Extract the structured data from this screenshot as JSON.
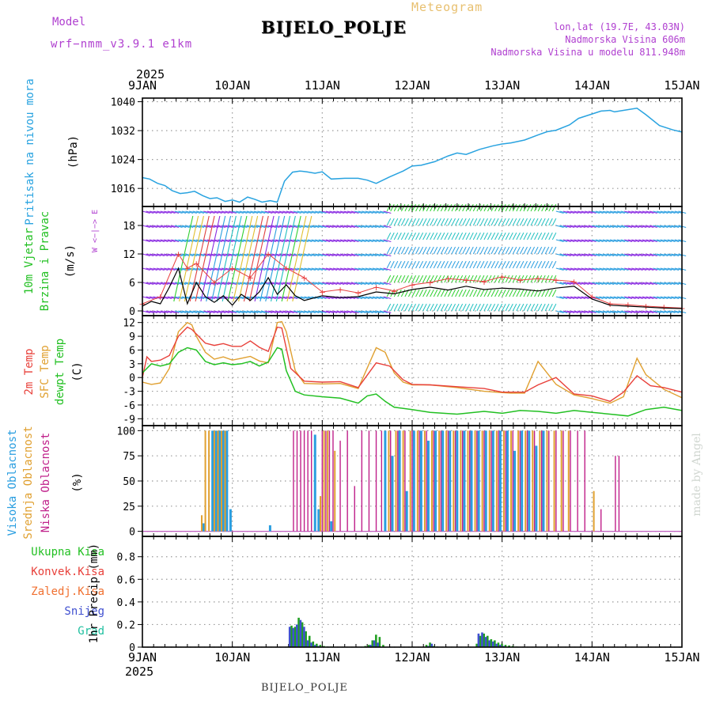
{
  "header": {
    "model_label": "Model",
    "model_version": "wrf−nmm_v3.9.1  e1km",
    "station": "BIJELO_POLJE",
    "product": "Meteogram",
    "lonlat": "lon,lat (19.7E, 43.03N)",
    "elevation": "Nadmorska Visina 606m",
    "model_elevation": "Nadmorska Visina u modelu 811.948m"
  },
  "footer_station": "BIJELO_POLJE",
  "watermark": "made by Angel",
  "colors": {
    "pressure": "#29a3e0",
    "temp2m": "#e8403a",
    "sfctemp": "#e0a030",
    "dewpt": "#22c022",
    "cloud_high": "#2a9ee0",
    "cloud_mid": "#e0a030",
    "cloud_low": "#c0208a",
    "precip_total": "#22a022",
    "precip_snow": "#4050d0",
    "label_purple": "#b040d0"
  },
  "chart_data": [
    {
      "type": "line",
      "panel": "pressure",
      "title": "",
      "ylabel_lines": [
        "Pritisak na nivou mora",
        "(hPa)"
      ],
      "x_axis": {
        "year_label": "2025",
        "ticks": [
          "9JAN",
          "10JAN",
          "11JAN",
          "12JAN",
          "13JAN",
          "14JAN",
          "15JAN"
        ],
        "range_days": [
          0,
          6
        ]
      },
      "ylim": [
        1011,
        1041
      ],
      "yticks": [
        1016,
        1024,
        1032,
        1040
      ],
      "grid": true,
      "series": [
        {
          "x": [
            0,
            0.08,
            0.17,
            0.25,
            0.33,
            0.42,
            0.5,
            0.58,
            0.67,
            0.75,
            0.83,
            0.92,
            1.0,
            1.08,
            1.17,
            1.25,
            1.33,
            1.42,
            1.5,
            1.58,
            1.67,
            1.75,
            1.83,
            1.92,
            2.0,
            2.1,
            2.25,
            2.4,
            2.5,
            2.6,
            2.75,
            2.9,
            3.0,
            3.1,
            3.25,
            3.4,
            3.5,
            3.6,
            3.75,
            3.9,
            4.0,
            4.1,
            4.25,
            4.4,
            4.5,
            4.6,
            4.75,
            4.85,
            5.0,
            5.1,
            5.2,
            5.25,
            5.35,
            5.5,
            5.6,
            5.75,
            5.9,
            6.0
          ],
          "y": [
            1019,
            1018.6,
            1017.4,
            1016.8,
            1015.4,
            1014.6,
            1014.8,
            1015.2,
            1014,
            1013.2,
            1013.4,
            1012.4,
            1012.8,
            1012.2,
            1013.6,
            1013,
            1012.2,
            1012.6,
            1012.2,
            1018,
            1020.5,
            1020.8,
            1020.6,
            1020.2,
            1020.6,
            1018.6,
            1018.8,
            1018.8,
            1018.3,
            1017.4,
            1019.2,
            1020.8,
            1022.2,
            1022.4,
            1023.4,
            1025,
            1025.8,
            1025.4,
            1026.8,
            1027.8,
            1028.3,
            1028.6,
            1029.4,
            1030.8,
            1031.7,
            1032.1,
            1033.6,
            1035.4,
            1036.6,
            1037.4,
            1037.6,
            1037.2,
            1037.6,
            1038.2,
            1036.4,
            1033.4,
            1032.2,
            1031.6
          ]
        }
      ]
    },
    {
      "type": "line",
      "panel": "wind",
      "title": "",
      "ylabel_lines": [
        "10m Vjetar",
        "Brzina i Pravac",
        "(m/s)"
      ],
      "direction_legend": "W  <−|−>  E",
      "ylim": [
        -1,
        22
      ],
      "yticks": [
        0,
        6,
        12,
        18
      ],
      "grid": true,
      "series": [
        {
          "name_key": "speed",
          "x": [
            0,
            0.1,
            0.2,
            0.3,
            0.4,
            0.5,
            0.6,
            0.7,
            0.8,
            0.9,
            1.0,
            1.1,
            1.2,
            1.3,
            1.4,
            1.5,
            1.6,
            1.7,
            1.8,
            2.0,
            2.2,
            2.4,
            2.6,
            2.8,
            3.0,
            3.2,
            3.4,
            3.6,
            3.8,
            4.0,
            4.2,
            4.4,
            4.6,
            4.8,
            5.0,
            5.2,
            5.4,
            5.6,
            5.8,
            6.0
          ],
          "y": [
            1,
            2,
            1.5,
            5,
            9,
            1.5,
            6,
            3,
            1.8,
            3.2,
            1.2,
            3.5,
            2.2,
            4,
            7,
            3.5,
            5.5,
            3.2,
            2.2,
            3.2,
            2.8,
            3,
            4,
            3.6,
            4.5,
            5,
            4.4,
            5.2,
            4.5,
            4.8,
            4.6,
            4.2,
            4.8,
            5.2,
            2.5,
            1.2,
            1.0,
            0.8,
            0.6,
            0.5
          ]
        },
        {
          "name_key": "gust",
          "x": [
            0,
            0.2,
            0.4,
            0.5,
            0.6,
            0.8,
            1.0,
            1.2,
            1.4,
            1.6,
            1.8,
            2.0,
            2.2,
            2.4,
            2.6,
            2.8,
            3.0,
            3.2,
            3.4,
            3.6,
            3.8,
            4.0,
            4.2,
            4.4,
            4.6,
            4.8,
            5.0,
            5.2,
            5.4,
            5.6,
            5.8,
            6.0
          ],
          "y": [
            1.5,
            3,
            12,
            9,
            10,
            6,
            9,
            7,
            12,
            9,
            7,
            4,
            4.5,
            3.8,
            5,
            4.2,
            5.5,
            6,
            6.8,
            6.5,
            6.2,
            7.2,
            6.5,
            6.8,
            6.5,
            6.2,
            3,
            1.5,
            1.3,
            1.0,
            0.8,
            0.6
          ]
        }
      ]
    },
    {
      "type": "line",
      "panel": "temperature",
      "title": "",
      "ylabel_lines": [
        "2m Temp",
        "SFC Temp",
        "dewpt Temp",
        "(C)"
      ],
      "ylim": [
        -10.5,
        13.5
      ],
      "yticks": [
        -9,
        -6,
        -3,
        0,
        3,
        6,
        9,
        12
      ],
      "grid": true,
      "series": [
        {
          "name_key": "temp2m",
          "x": [
            0,
            0.05,
            0.1,
            0.2,
            0.3,
            0.4,
            0.5,
            0.55,
            0.6,
            0.7,
            0.8,
            0.9,
            1.0,
            1.1,
            1.2,
            1.3,
            1.4,
            1.5,
            1.55,
            1.65,
            1.8,
            2.0,
            2.2,
            2.4,
            2.6,
            2.75,
            2.9,
            3.0,
            3.2,
            3.5,
            3.8,
            4.0,
            4.1,
            4.25,
            4.4,
            4.6,
            4.8,
            5.0,
            5.2,
            5.35,
            5.5,
            5.65,
            5.8,
            6.0
          ],
          "y": [
            0,
            4.5,
            3.5,
            3.8,
            4.8,
            9,
            11,
            10.5,
            9.5,
            7.5,
            7,
            7.4,
            6.8,
            6.8,
            8,
            6.6,
            5.7,
            11,
            10.8,
            2,
            -0.8,
            -1,
            -0.9,
            -2.2,
            3.2,
            2.5,
            -0.5,
            -1.5,
            -1.6,
            -2,
            -2.4,
            -3.2,
            -3.2,
            -3.2,
            -1.6,
            0,
            -3.6,
            -4,
            -5.2,
            -3.2,
            0.4,
            -1.8,
            -2.2,
            -3.2
          ]
        },
        {
          "name_key": "sfctemp",
          "x": [
            0,
            0.1,
            0.2,
            0.3,
            0.4,
            0.5,
            0.55,
            0.6,
            0.7,
            0.8,
            0.9,
            1.0,
            1.1,
            1.2,
            1.3,
            1.4,
            1.5,
            1.55,
            1.6,
            1.7,
            1.8,
            2.0,
            2.2,
            2.4,
            2.6,
            2.7,
            2.8,
            2.9,
            3.0,
            3.2,
            3.5,
            3.8,
            4.0,
            4.1,
            4.25,
            4.4,
            4.6,
            4.8,
            5.0,
            5.2,
            5.35,
            5.5,
            5.6,
            5.8,
            6.0
          ],
          "y": [
            -1,
            -1.5,
            -1.2,
            2,
            10,
            12,
            11.5,
            9,
            5.5,
            4,
            4.5,
            3.8,
            4.2,
            4.6,
            3.6,
            3.2,
            12,
            12.2,
            10,
            1.5,
            -1.3,
            -1.4,
            -1.3,
            -2.4,
            6.5,
            5.5,
            1,
            -1,
            -1.6,
            -1.6,
            -2.2,
            -3,
            -3.3,
            -3.4,
            -3.4,
            3.5,
            -1.5,
            -3.8,
            -4.6,
            -5.6,
            -4.2,
            4.2,
            0.6,
            -2.6,
            -4.4
          ]
        },
        {
          "name_key": "dewpt",
          "x": [
            0,
            0.1,
            0.2,
            0.3,
            0.4,
            0.5,
            0.6,
            0.7,
            0.8,
            0.9,
            1.0,
            1.1,
            1.2,
            1.3,
            1.4,
            1.5,
            1.55,
            1.6,
            1.7,
            1.8,
            2.0,
            2.2,
            2.4,
            2.5,
            2.6,
            2.7,
            2.8,
            3.0,
            3.2,
            3.5,
            3.8,
            4.0,
            4.2,
            4.4,
            4.6,
            4.8,
            5.0,
            5.2,
            5.4,
            5.6,
            5.8,
            6.0
          ],
          "y": [
            1,
            3,
            2.5,
            3,
            5.5,
            6.5,
            6,
            3.5,
            2.8,
            3.2,
            2.8,
            3,
            3.5,
            2.5,
            3.4,
            6.5,
            6.2,
            1.5,
            -3,
            -3.8,
            -4.2,
            -4.5,
            -5.6,
            -4,
            -3.6,
            -5.2,
            -6.5,
            -7,
            -7.6,
            -8,
            -7.4,
            -7.8,
            -7.2,
            -7.4,
            -7.8,
            -7.2,
            -7.6,
            -8,
            -8.4,
            -7,
            -6.5,
            -7.2
          ]
        }
      ]
    },
    {
      "type": "bar",
      "panel": "cloud",
      "title": "",
      "ylabel_lines": [
        "Visoka Oblacnost",
        "Srednja Oblacnost",
        "Niska Oblacnost",
        "(%)"
      ],
      "ylim": [
        -5,
        105
      ],
      "yticks": [
        0,
        25,
        50,
        75,
        100
      ],
      "grid": true,
      "series": [
        {
          "name_key": "high",
          "x": [
            0.68,
            0.78,
            0.82,
            0.86,
            0.9,
            0.94,
            0.98,
            1.42,
            1.92,
            1.96,
            2.1,
            2.7,
            2.78,
            2.86,
            2.94,
            3.02,
            3.1,
            3.18,
            3.26,
            3.34,
            3.42,
            3.5,
            3.58,
            3.66,
            3.74,
            3.82,
            3.9,
            3.98,
            4.06,
            4.14,
            4.22,
            4.3,
            4.38,
            4.46
          ],
          "y": [
            8,
            100,
            100,
            100,
            100,
            100,
            22,
            6,
            96,
            22,
            10,
            100,
            75,
            100,
            40,
            100,
            100,
            90,
            100,
            100,
            100,
            100,
            100,
            100,
            100,
            100,
            100,
            100,
            100,
            80,
            100,
            100,
            85,
            100
          ]
        },
        {
          "name_key": "mid",
          "x": [
            0.66,
            0.7,
            0.74,
            0.8,
            0.84,
            0.88,
            0.92,
            1.98,
            2.02,
            2.06,
            2.14,
            2.74,
            2.82,
            2.9,
            2.98,
            3.06,
            3.14,
            3.22,
            3.3,
            3.38,
            3.46,
            3.54,
            3.62,
            3.7,
            3.78,
            3.86,
            3.94,
            4.02,
            4.1,
            4.18,
            4.26,
            4.34,
            4.42,
            4.5,
            4.58,
            4.66,
            4.74,
            5.02
          ],
          "y": [
            16,
            100,
            100,
            100,
            100,
            100,
            100,
            35,
            100,
            100,
            80,
            100,
            100,
            100,
            100,
            100,
            100,
            100,
            100,
            100,
            100,
            100,
            100,
            100,
            100,
            100,
            100,
            100,
            100,
            100,
            100,
            100,
            100,
            100,
            100,
            100,
            100,
            40
          ]
        },
        {
          "name_key": "low",
          "x": [
            1.68,
            1.72,
            1.76,
            1.8,
            1.84,
            1.88,
            2.0,
            2.04,
            2.08,
            2.12,
            2.2,
            2.28,
            2.36,
            2.44,
            2.52,
            2.6,
            2.66,
            2.76,
            2.84,
            2.92,
            3.0,
            3.08,
            3.16,
            3.24,
            3.32,
            3.4,
            3.48,
            3.56,
            3.64,
            3.72,
            3.8,
            3.88,
            3.96,
            4.04,
            4.12,
            4.2,
            4.28,
            4.36,
            4.44,
            4.52,
            4.6,
            4.68,
            4.76,
            4.84,
            4.92,
            5.1,
            5.26,
            5.3
          ],
          "y": [
            100,
            100,
            100,
            100,
            100,
            100,
            100,
            100,
            100,
            100,
            90,
            100,
            45,
            100,
            100,
            100,
            100,
            100,
            100,
            100,
            100,
            100,
            100,
            100,
            100,
            100,
            100,
            100,
            100,
            100,
            100,
            100,
            100,
            100,
            100,
            100,
            100,
            100,
            100,
            100,
            100,
            100,
            100,
            100,
            100,
            22,
            75,
            75
          ]
        }
      ]
    },
    {
      "type": "bar",
      "panel": "precip",
      "title": "",
      "ylabel_lines": [
        "Ukupna Kisa",
        "Konvek.Kisa",
        "Zaledj.Kisa",
        "Snijeg",
        "Grad",
        "1hr Precip (mm)"
      ],
      "ylim": [
        0,
        0.98
      ],
      "yticks": [
        0,
        0.2,
        0.4,
        0.6,
        0.8
      ],
      "grid": true,
      "series": [
        {
          "name_key": "total",
          "x": [
            1.62,
            1.66,
            1.7,
            1.74,
            1.78,
            1.82,
            1.86,
            1.9,
            1.94,
            1.98,
            2.02,
            2.06,
            2.1,
            2.48,
            2.52,
            2.56,
            2.6,
            2.64,
            2.68,
            3.16,
            3.2,
            3.24,
            3.28,
            3.72,
            3.76,
            3.8,
            3.84,
            3.88,
            3.92,
            3.96,
            4.0,
            4.04,
            4.08,
            4.12,
            4.16
          ],
          "y": [
            0.005,
            0.19,
            0.18,
            0.26,
            0.22,
            0.14,
            0.1,
            0.05,
            0.03,
            0.02,
            0.01,
            0.005,
            0.005,
            0.01,
            0.02,
            0.06,
            0.11,
            0.09,
            0.02,
            0.02,
            0.04,
            0.01,
            0.005,
            0.03,
            0.1,
            0.12,
            0.1,
            0.07,
            0.06,
            0.04,
            0.03,
            0.02,
            0.015,
            0.01,
            0.005
          ]
        },
        {
          "name_key": "snow",
          "x": [
            1.64,
            1.68,
            1.72,
            1.76,
            1.8,
            1.84,
            1.88,
            1.92,
            1.96,
            2.54,
            2.58,
            2.62,
            3.18,
            3.22,
            3.74,
            3.78,
            3.82,
            3.86,
            3.9,
            3.94,
            3.98,
            4.02
          ],
          "y": [
            0.18,
            0.17,
            0.2,
            0.24,
            0.18,
            0.06,
            0.04,
            0.02,
            0.01,
            0.02,
            0.06,
            0.04,
            0.01,
            0.03,
            0.12,
            0.13,
            0.09,
            0.06,
            0.05,
            0.03,
            0.02,
            0.01
          ]
        }
      ]
    }
  ]
}
